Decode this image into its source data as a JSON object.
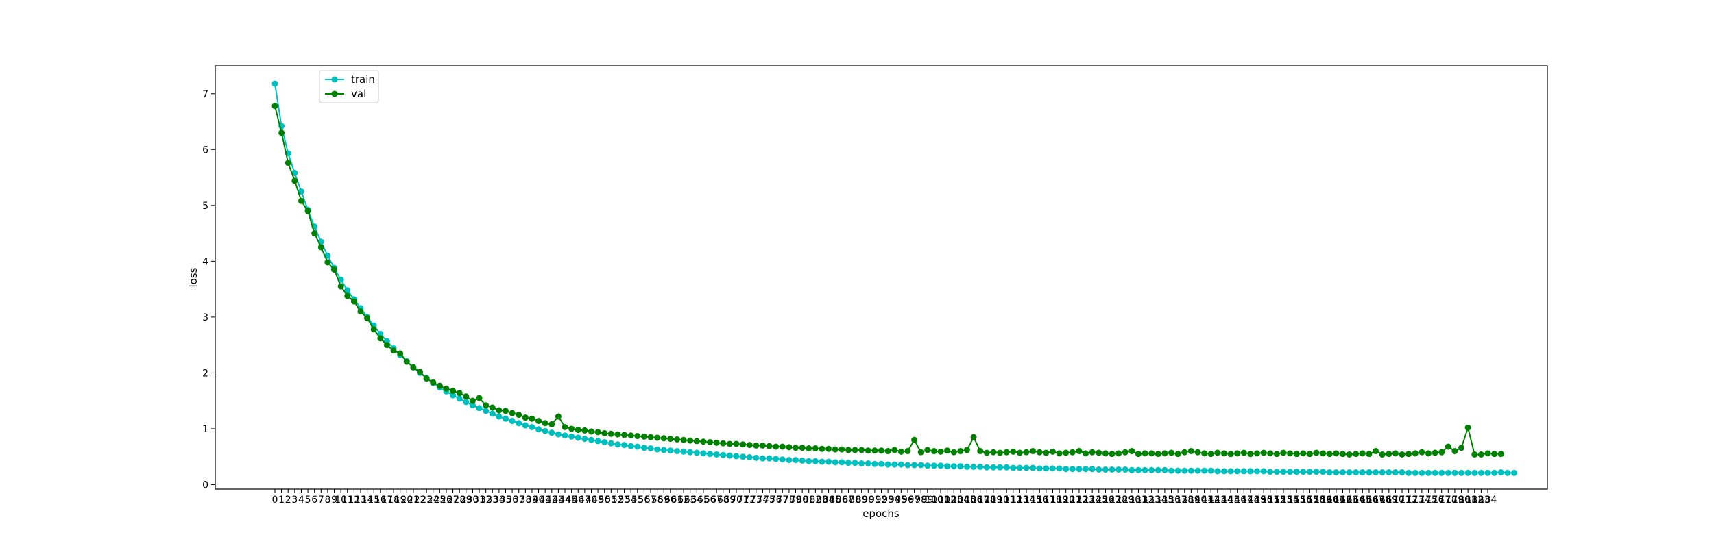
{
  "chart_data": {
    "type": "line",
    "xlabel": "epochs",
    "ylabel": "loss",
    "ylim": [
      -0.08,
      7.5
    ],
    "yticks": [
      0,
      1,
      2,
      3,
      4,
      5,
      6,
      7
    ],
    "x_start": 0,
    "x_end": 184,
    "grid": false,
    "legend_position": "top-left",
    "series": [
      {
        "name": "train",
        "color": "#00bfbf",
        "marker": "circle",
        "values": [
          7.18,
          6.42,
          5.93,
          5.58,
          5.25,
          4.92,
          4.62,
          4.35,
          4.1,
          3.88,
          3.67,
          3.48,
          3.32,
          3.16,
          3.0,
          2.85,
          2.7,
          2.57,
          2.44,
          2.32,
          2.21,
          2.1,
          2.0,
          1.91,
          1.82,
          1.74,
          1.67,
          1.6,
          1.54,
          1.48,
          1.42,
          1.37,
          1.32,
          1.27,
          1.22,
          1.18,
          1.14,
          1.1,
          1.06,
          1.03,
          0.99,
          0.96,
          0.93,
          0.9,
          0.88,
          0.86,
          0.84,
          0.82,
          0.8,
          0.78,
          0.76,
          0.74,
          0.72,
          0.71,
          0.69,
          0.68,
          0.66,
          0.65,
          0.63,
          0.62,
          0.61,
          0.6,
          0.59,
          0.58,
          0.57,
          0.56,
          0.55,
          0.54,
          0.53,
          0.52,
          0.51,
          0.5,
          0.49,
          0.48,
          0.47,
          0.47,
          0.46,
          0.45,
          0.44,
          0.44,
          0.43,
          0.42,
          0.42,
          0.41,
          0.41,
          0.4,
          0.4,
          0.39,
          0.39,
          0.38,
          0.38,
          0.37,
          0.37,
          0.36,
          0.36,
          0.36,
          0.35,
          0.35,
          0.35,
          0.34,
          0.34,
          0.34,
          0.33,
          0.33,
          0.33,
          0.32,
          0.32,
          0.32,
          0.31,
          0.31,
          0.31,
          0.31,
          0.3,
          0.3,
          0.3,
          0.3,
          0.29,
          0.29,
          0.29,
          0.29,
          0.28,
          0.28,
          0.28,
          0.28,
          0.28,
          0.27,
          0.27,
          0.27,
          0.27,
          0.27,
          0.26,
          0.26,
          0.26,
          0.26,
          0.26,
          0.26,
          0.25,
          0.25,
          0.25,
          0.25,
          0.25,
          0.25,
          0.25,
          0.24,
          0.24,
          0.24,
          0.24,
          0.24,
          0.24,
          0.24,
          0.24,
          0.23,
          0.23,
          0.23,
          0.23,
          0.23,
          0.23,
          0.23,
          0.23,
          0.23,
          0.22,
          0.22,
          0.22,
          0.22,
          0.22,
          0.22,
          0.22,
          0.22,
          0.22,
          0.22,
          0.22,
          0.22,
          0.21,
          0.21,
          0.21,
          0.21,
          0.21,
          0.21,
          0.21,
          0.21,
          0.21,
          0.21,
          0.21,
          0.21,
          0.21,
          0.21,
          0.22,
          0.21,
          0.21
        ]
      },
      {
        "name": "val",
        "color": "#008000",
        "marker": "circle",
        "values": [
          6.78,
          6.3,
          5.76,
          5.44,
          5.08,
          4.9,
          4.5,
          4.25,
          3.98,
          3.85,
          3.55,
          3.38,
          3.28,
          3.1,
          2.98,
          2.78,
          2.62,
          2.5,
          2.4,
          2.35,
          2.2,
          2.1,
          2.02,
          1.9,
          1.83,
          1.77,
          1.72,
          1.68,
          1.64,
          1.58,
          1.5,
          1.55,
          1.42,
          1.38,
          1.33,
          1.32,
          1.28,
          1.25,
          1.2,
          1.18,
          1.14,
          1.1,
          1.08,
          1.22,
          1.03,
          1.0,
          0.98,
          0.97,
          0.95,
          0.94,
          0.92,
          0.91,
          0.9,
          0.89,
          0.88,
          0.87,
          0.86,
          0.85,
          0.84,
          0.83,
          0.82,
          0.81,
          0.8,
          0.79,
          0.78,
          0.77,
          0.76,
          0.75,
          0.74,
          0.73,
          0.73,
          0.72,
          0.71,
          0.7,
          0.7,
          0.69,
          0.68,
          0.68,
          0.67,
          0.66,
          0.66,
          0.65,
          0.65,
          0.64,
          0.64,
          0.63,
          0.63,
          0.62,
          0.62,
          0.62,
          0.61,
          0.61,
          0.61,
          0.6,
          0.62,
          0.59,
          0.6,
          0.8,
          0.58,
          0.62,
          0.6,
          0.59,
          0.61,
          0.58,
          0.6,
          0.62,
          0.85,
          0.6,
          0.57,
          0.58,
          0.57,
          0.58,
          0.59,
          0.57,
          0.58,
          0.6,
          0.58,
          0.57,
          0.59,
          0.56,
          0.57,
          0.58,
          0.6,
          0.56,
          0.58,
          0.57,
          0.56,
          0.55,
          0.56,
          0.58,
          0.6,
          0.55,
          0.56,
          0.56,
          0.55,
          0.56,
          0.57,
          0.55,
          0.58,
          0.6,
          0.58,
          0.56,
          0.55,
          0.57,
          0.56,
          0.55,
          0.56,
          0.57,
          0.55,
          0.56,
          0.57,
          0.56,
          0.55,
          0.57,
          0.56,
          0.55,
          0.56,
          0.55,
          0.57,
          0.56,
          0.55,
          0.56,
          0.55,
          0.54,
          0.55,
          0.56,
          0.55,
          0.6,
          0.54,
          0.55,
          0.56,
          0.54,
          0.55,
          0.56,
          0.58,
          0.56,
          0.57,
          0.58,
          0.68,
          0.6,
          0.66,
          1.02,
          0.54,
          0.54,
          0.56,
          0.55,
          0.55
        ]
      }
    ]
  }
}
